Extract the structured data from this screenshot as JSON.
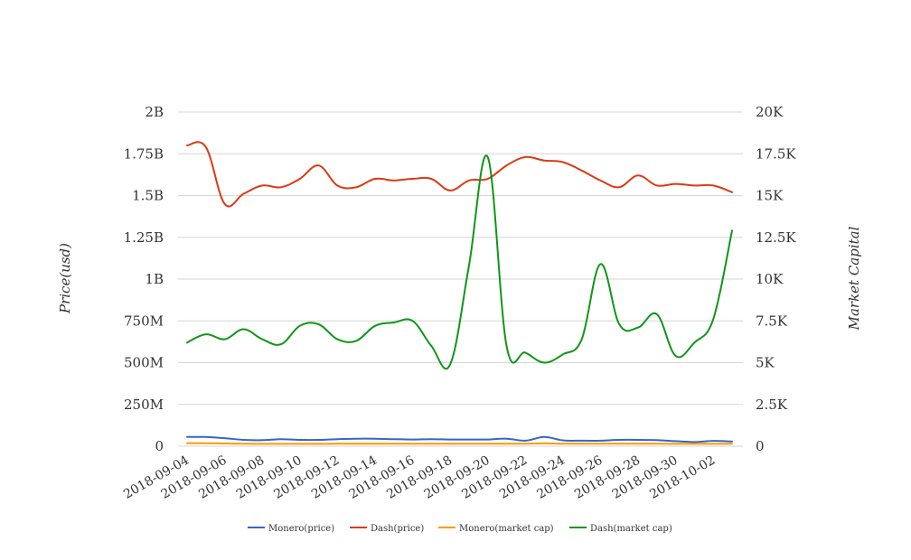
{
  "chart_data": {
    "type": "line",
    "title": "",
    "x": [
      "2018-09-04",
      "2018-09-05",
      "2018-09-06",
      "2018-09-07",
      "2018-09-08",
      "2018-09-09",
      "2018-09-10",
      "2018-09-11",
      "2018-09-12",
      "2018-09-13",
      "2018-09-14",
      "2018-09-15",
      "2018-09-16",
      "2018-09-17",
      "2018-09-18",
      "2018-09-19",
      "2018-09-20",
      "2018-09-21",
      "2018-09-22",
      "2018-09-23",
      "2018-09-24",
      "2018-09-25",
      "2018-09-26",
      "2018-09-27",
      "2018-09-28",
      "2018-09-29",
      "2018-09-30",
      "2018-10-01",
      "2018-10-02",
      "2018-10-03"
    ],
    "x_tick_labels": [
      "2018-09-04",
      "2018-09-06",
      "2018-09-08",
      "2018-09-10",
      "2018-09-12",
      "2018-09-14",
      "2018-09-16",
      "2018-09-18",
      "2018-09-20",
      "2018-09-22",
      "2018-09-24",
      "2018-09-26",
      "2018-09-28",
      "2018-09-30",
      "2018-10-02"
    ],
    "left_axis": {
      "label": "Price(usd)",
      "range": [
        0,
        2000000000
      ],
      "ticks": [
        {
          "value": 0,
          "label": "0"
        },
        {
          "value": 250000000,
          "label": "250M"
        },
        {
          "value": 500000000,
          "label": "500M"
        },
        {
          "value": 750000000,
          "label": "750M"
        },
        {
          "value": 1000000000,
          "label": "1B"
        },
        {
          "value": 1250000000,
          "label": "1.25B"
        },
        {
          "value": 1500000000,
          "label": "1.5B"
        },
        {
          "value": 1750000000,
          "label": "1.75B"
        },
        {
          "value": 2000000000,
          "label": "2B"
        }
      ]
    },
    "right_axis": {
      "label": "Market Capital",
      "range": [
        0,
        20000
      ],
      "ticks": [
        {
          "value": 0,
          "label": "0"
        },
        {
          "value": 2500,
          "label": "2.5K"
        },
        {
          "value": 5000,
          "label": "5K"
        },
        {
          "value": 7500,
          "label": "7.5K"
        },
        {
          "value": 10000,
          "label": "10K"
        },
        {
          "value": 12500,
          "label": "12.5K"
        },
        {
          "value": 15000,
          "label": "15K"
        },
        {
          "value": 17500,
          "label": "17.5K"
        },
        {
          "value": 20000,
          "label": "20K"
        }
      ]
    },
    "grid": true,
    "legend_position": "bottom-center",
    "series": [
      {
        "name": "Monero(price)",
        "axis": "left",
        "color": "#3366cc",
        "values": [
          55000000,
          55000000,
          48000000,
          38000000,
          36000000,
          42000000,
          38000000,
          38000000,
          42000000,
          45000000,
          45000000,
          42000000,
          40000000,
          42000000,
          40000000,
          40000000,
          40000000,
          45000000,
          33000000,
          55000000,
          35000000,
          33000000,
          33000000,
          38000000,
          38000000,
          36000000,
          30000000,
          25000000,
          32000000,
          28000000
        ]
      },
      {
        "name": "Dash(price)",
        "axis": "left",
        "color": "#dc3912",
        "values": [
          1800000000,
          1790000000,
          1450000000,
          1510000000,
          1560000000,
          1550000000,
          1600000000,
          1680000000,
          1560000000,
          1550000000,
          1600000000,
          1590000000,
          1600000000,
          1600000000,
          1530000000,
          1590000000,
          1600000000,
          1680000000,
          1730000000,
          1710000000,
          1700000000,
          1650000000,
          1590000000,
          1550000000,
          1620000000,
          1560000000,
          1570000000,
          1560000000,
          1560000000,
          1520000000
        ]
      },
      {
        "name": "Monero(market cap)",
        "axis": "left",
        "color": "#ff9900",
        "values": [
          18000000,
          18000000,
          16000000,
          15000000,
          14000000,
          14000000,
          14000000,
          14000000,
          15000000,
          15000000,
          15000000,
          15000000,
          15000000,
          15000000,
          15000000,
          15000000,
          15000000,
          15000000,
          15000000,
          17000000,
          15000000,
          15000000,
          15000000,
          15000000,
          15000000,
          15000000,
          14000000,
          14000000,
          14000000,
          14000000
        ]
      },
      {
        "name": "Dash(market cap)",
        "axis": "right",
        "color": "#109618",
        "values": [
          6200,
          6700,
          6400,
          7000,
          6400,
          6100,
          7200,
          7300,
          6400,
          6300,
          7200,
          7400,
          7500,
          6000,
          4900,
          10800,
          17300,
          6000,
          5600,
          5000,
          5500,
          6400,
          10900,
          7300,
          7100,
          7900,
          5400,
          6200,
          7600,
          12900
        ]
      }
    ]
  }
}
